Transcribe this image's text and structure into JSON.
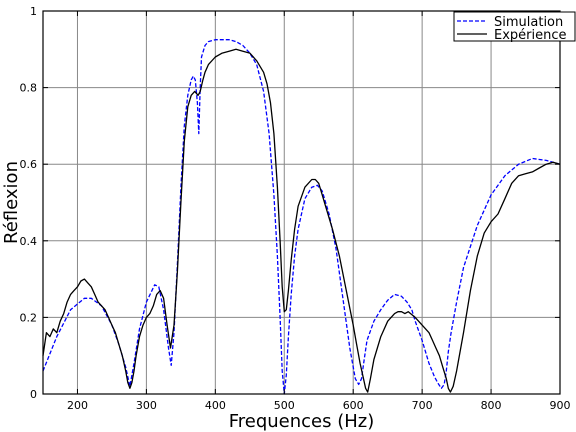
{
  "chart_data": {
    "type": "line",
    "title": "",
    "xlabel": "Frequences (Hz)",
    "ylabel": "Réflexion",
    "xlim": [
      150,
      900
    ],
    "ylim": [
      0,
      1
    ],
    "xticks": [
      200,
      300,
      400,
      500,
      600,
      700,
      800,
      900
    ],
    "yticks": [
      0,
      0.2,
      0.4,
      0.6,
      0.8,
      1
    ],
    "ytick_labels": [
      "0",
      "0.2",
      "0.4",
      "0.6",
      "0.8",
      "1"
    ],
    "grid": true,
    "legend_position": "top-right",
    "series": [
      {
        "name": "Simulation",
        "color": "#0000ff",
        "style": "dashed",
        "x": [
          150,
          170,
          190,
          210,
          220,
          235,
          250,
          260,
          270,
          276,
          282,
          290,
          300,
          312,
          318,
          325,
          332,
          336,
          340,
          345,
          350,
          355,
          360,
          365,
          368,
          371,
          374,
          376,
          378,
          380,
          385,
          390,
          400,
          410,
          420,
          430,
          440,
          450,
          460,
          470,
          478,
          485,
          490,
          494,
          497,
          500,
          503,
          506,
          510,
          515,
          520,
          530,
          540,
          548,
          555,
          565,
          575,
          585,
          595,
          603,
          608,
          612,
          616,
          620,
          630,
          640,
          650,
          660,
          670,
          678,
          685,
          690,
          700,
          710,
          718,
          724,
          728,
          732,
          735,
          738,
          742,
          750,
          760,
          780,
          800,
          820,
          840,
          860,
          880,
          900
        ],
        "y": [
          0.06,
          0.15,
          0.22,
          0.25,
          0.25,
          0.23,
          0.18,
          0.13,
          0.07,
          0.02,
          0.08,
          0.17,
          0.24,
          0.285,
          0.28,
          0.22,
          0.12,
          0.075,
          0.16,
          0.34,
          0.54,
          0.7,
          0.78,
          0.82,
          0.83,
          0.82,
          0.76,
          0.68,
          0.8,
          0.88,
          0.91,
          0.92,
          0.925,
          0.925,
          0.925,
          0.92,
          0.91,
          0.89,
          0.86,
          0.79,
          0.68,
          0.52,
          0.36,
          0.2,
          0.06,
          0.0,
          0.05,
          0.15,
          0.26,
          0.36,
          0.43,
          0.51,
          0.54,
          0.545,
          0.53,
          0.47,
          0.38,
          0.25,
          0.12,
          0.04,
          0.025,
          0.04,
          0.09,
          0.14,
          0.19,
          0.22,
          0.245,
          0.26,
          0.255,
          0.24,
          0.22,
          0.19,
          0.14,
          0.08,
          0.045,
          0.025,
          0.015,
          0.025,
          0.06,
          0.11,
          0.16,
          0.24,
          0.33,
          0.44,
          0.52,
          0.57,
          0.6,
          0.615,
          0.61,
          0.6
        ]
      },
      {
        "name": "Expérience",
        "color": "#000000",
        "style": "solid",
        "x": [
          150,
          155,
          160,
          165,
          170,
          175,
          180,
          185,
          190,
          195,
          200,
          205,
          210,
          215,
          220,
          225,
          230,
          235,
          240,
          245,
          250,
          255,
          260,
          265,
          270,
          273,
          276,
          279,
          282,
          285,
          290,
          295,
          300,
          305,
          310,
          315,
          320,
          325,
          330,
          335,
          340,
          345,
          350,
          355,
          360,
          365,
          370,
          375,
          378,
          382,
          385,
          390,
          400,
          410,
          420,
          430,
          440,
          450,
          460,
          470,
          475,
          480,
          485,
          490,
          494,
          497,
          500,
          503,
          506,
          510,
          515,
          520,
          530,
          540,
          545,
          550,
          555,
          560,
          570,
          580,
          590,
          600,
          605,
          610,
          615,
          618,
          621,
          625,
          630,
          640,
          650,
          660,
          665,
          670,
          675,
          680,
          690,
          700,
          710,
          715,
          720,
          725,
          730,
          735,
          738,
          741,
          745,
          750,
          760,
          770,
          780,
          790,
          800,
          810,
          820,
          830,
          840,
          850,
          860,
          870,
          880,
          890,
          900
        ],
        "y": [
          0.1,
          0.16,
          0.15,
          0.17,
          0.16,
          0.19,
          0.21,
          0.24,
          0.26,
          0.27,
          0.28,
          0.295,
          0.3,
          0.29,
          0.28,
          0.26,
          0.24,
          0.23,
          0.22,
          0.2,
          0.18,
          0.16,
          0.13,
          0.1,
          0.06,
          0.03,
          0.015,
          0.03,
          0.06,
          0.1,
          0.15,
          0.18,
          0.2,
          0.21,
          0.23,
          0.26,
          0.27,
          0.25,
          0.18,
          0.12,
          0.18,
          0.32,
          0.5,
          0.66,
          0.75,
          0.78,
          0.79,
          0.78,
          0.79,
          0.82,
          0.84,
          0.86,
          0.88,
          0.89,
          0.895,
          0.9,
          0.895,
          0.89,
          0.87,
          0.84,
          0.81,
          0.76,
          0.68,
          0.54,
          0.4,
          0.28,
          0.215,
          0.22,
          0.27,
          0.35,
          0.43,
          0.49,
          0.54,
          0.56,
          0.56,
          0.55,
          0.52,
          0.49,
          0.43,
          0.36,
          0.27,
          0.18,
          0.13,
          0.08,
          0.04,
          0.015,
          0.005,
          0.04,
          0.09,
          0.15,
          0.19,
          0.21,
          0.215,
          0.215,
          0.21,
          0.215,
          0.2,
          0.18,
          0.16,
          0.14,
          0.12,
          0.1,
          0.07,
          0.04,
          0.015,
          0.005,
          0.02,
          0.06,
          0.16,
          0.27,
          0.36,
          0.42,
          0.45,
          0.47,
          0.51,
          0.55,
          0.57,
          0.575,
          0.58,
          0.59,
          0.6,
          0.605,
          0.6
        ]
      }
    ]
  }
}
